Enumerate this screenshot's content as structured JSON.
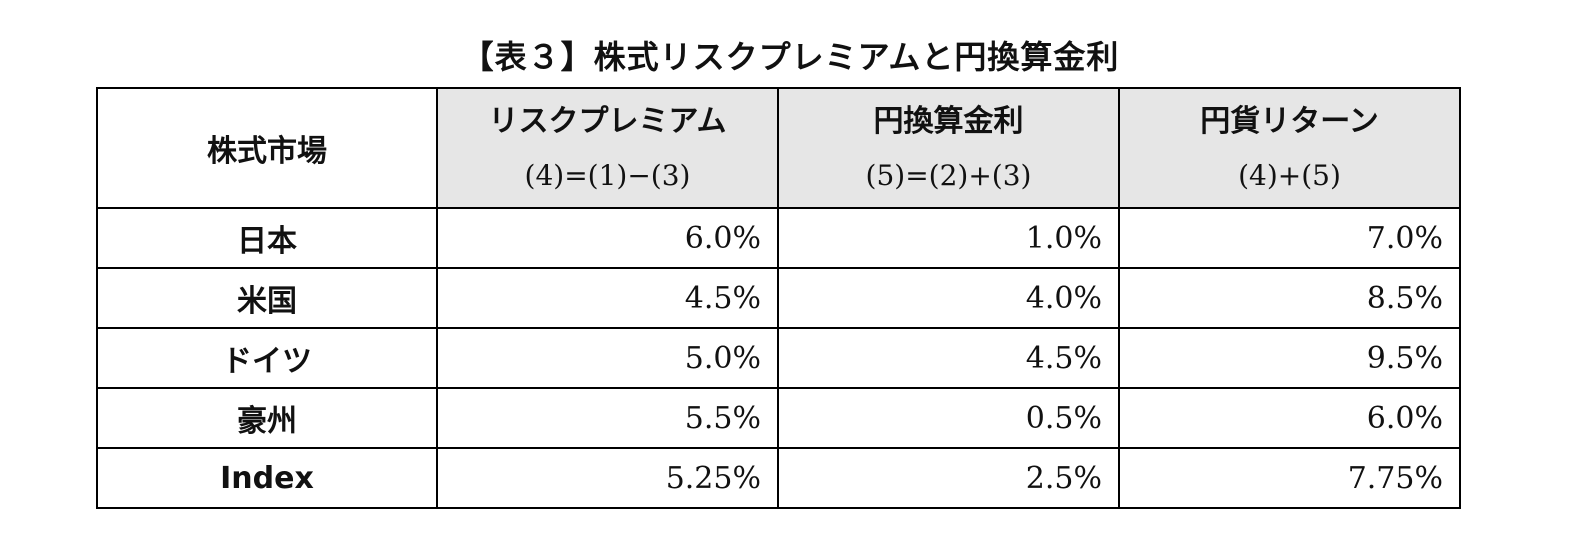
{
  "title": "【表３】株式リスクプレミアムと円換算金利",
  "table": {
    "headers": [
      {
        "main": "株式市場",
        "sub": ""
      },
      {
        "main": "リスクプレミアム",
        "sub": "(4)=(1)−(3)"
      },
      {
        "main": "円換算金利",
        "sub": "(5)=(2)+(3)"
      },
      {
        "main": "円貨リターン",
        "sub": "(4)+(5)"
      }
    ],
    "header_shade_color": "#e6e6e6",
    "rows": [
      {
        "market": "日本",
        "risk_premium": "6.0%",
        "yen_rate": "1.0%",
        "yen_return": "7.0%"
      },
      {
        "market": "米国",
        "risk_premium": "4.5%",
        "yen_rate": "4.0%",
        "yen_return": "8.5%"
      },
      {
        "market": "ドイツ",
        "risk_premium": "5.0%",
        "yen_rate": "4.5%",
        "yen_return": "9.5%"
      },
      {
        "market": "豪州",
        "risk_premium": "5.5%",
        "yen_rate": "0.5%",
        "yen_return": "6.0%"
      },
      {
        "market": "Index",
        "risk_premium": "5.25%",
        "yen_rate": "2.5%",
        "yen_return": "7.75%"
      }
    ]
  }
}
